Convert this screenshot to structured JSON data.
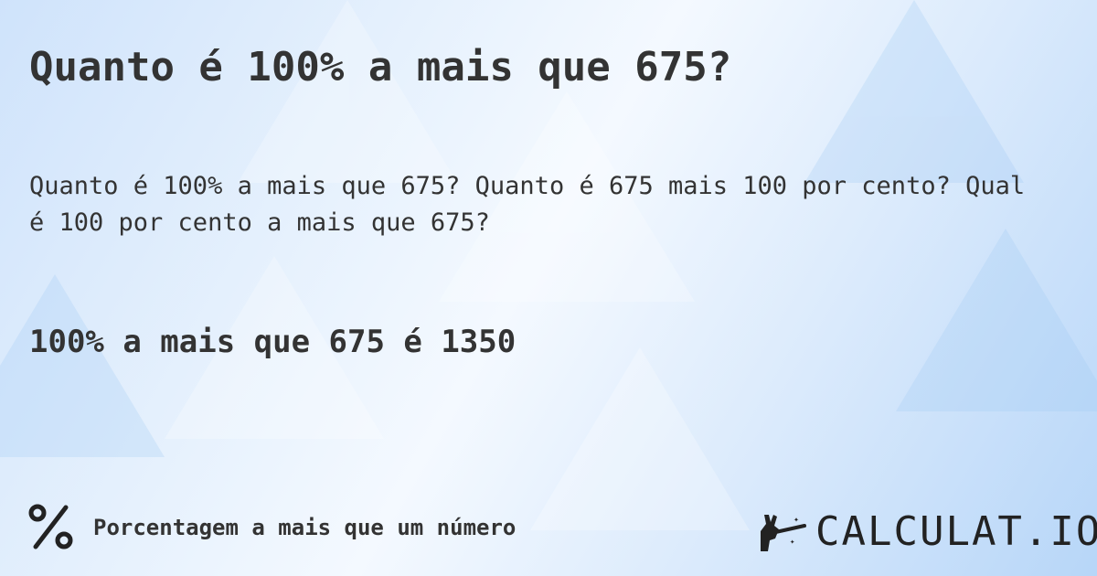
{
  "title": "Quanto é 100% a mais que 675?",
  "description": "Quanto é 100% a mais que 675? Quanto é 675 mais 100 por cento? Qual é 100 por cento a mais que 675?",
  "answer": "100% a mais que 675 é 1350",
  "footer": {
    "icon": "percent-icon",
    "label": "Porcentagem a mais que um número"
  },
  "logo": {
    "icon": "magic-hand-wand-icon",
    "text": "CALCULAT.IO"
  }
}
